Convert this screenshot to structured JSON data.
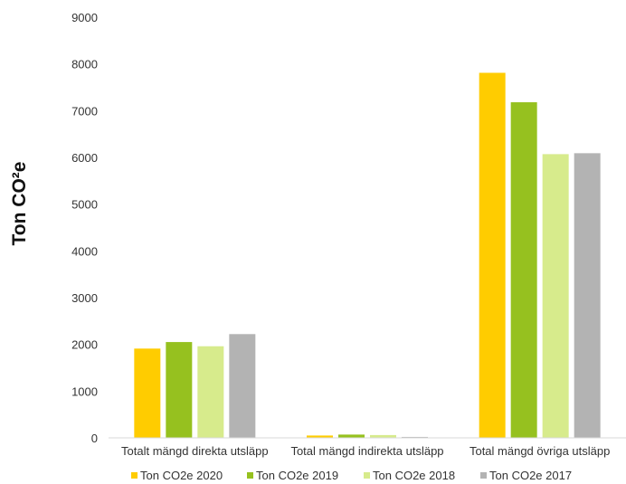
{
  "chart_data": {
    "type": "bar",
    "title": "",
    "xlabel": "",
    "ylabel": "Ton CO²e",
    "ylim": [
      0,
      9000
    ],
    "yticks": [
      0,
      1000,
      2000,
      3000,
      4000,
      5000,
      6000,
      7000,
      8000,
      9000
    ],
    "grid": false,
    "legend_position": "bottom",
    "categories": [
      "Totalt mängd direkta utsläpp",
      "Total mängd indirekta utsläpp",
      "Total mängd övriga utsläpp"
    ],
    "series": [
      {
        "name": "Ton CO2e 2020",
        "color": "#FFCC00",
        "values": [
          1910,
          50,
          7810
        ]
      },
      {
        "name": "Ton CO2e 2019",
        "color": "#96C11F",
        "values": [
          2050,
          70,
          7180
        ]
      },
      {
        "name": "Ton CO2e 2018",
        "color": "#D7EB8C",
        "values": [
          1960,
          60,
          6070
        ]
      },
      {
        "name": "Ton CO2e 2017",
        "color": "#B3B3B3",
        "values": [
          2220,
          20,
          6090
        ]
      }
    ]
  }
}
